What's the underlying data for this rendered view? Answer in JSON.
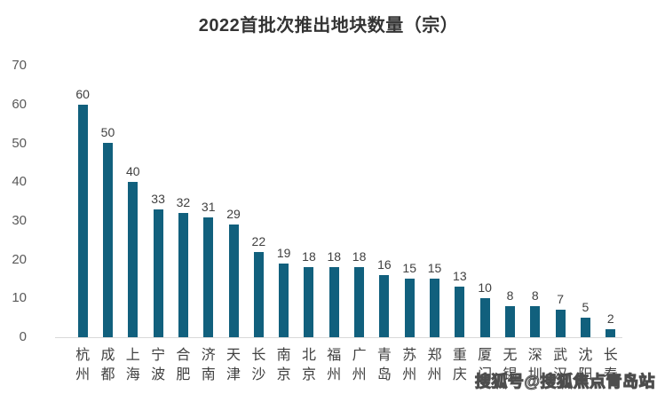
{
  "title": "2022首批次推出地块数量（宗）",
  "watermark": "搜狐号@搜狐焦点青岛站",
  "colors": {
    "bar": "#11607d",
    "title_text": "#333333",
    "axis_tick_text": "#595959",
    "value_label_text": "#404040",
    "category_label_text": "#404040",
    "axis_line": "#d9d9d9",
    "background": "#ffffff"
  },
  "chart_data": {
    "type": "bar",
    "title": "2022首批次推出地块数量（宗）",
    "categories": [
      "杭州",
      "成都",
      "上海",
      "宁波",
      "合肥",
      "济南",
      "天津",
      "长沙",
      "南京",
      "北京",
      "福州",
      "广州",
      "青岛",
      "苏州",
      "郑州",
      "重庆",
      "厦门",
      "无锡",
      "深圳",
      "武汉",
      "沈阳",
      "长春"
    ],
    "values": [
      60,
      50,
      40,
      33,
      32,
      31,
      29,
      22,
      19,
      18,
      18,
      18,
      16,
      15,
      15,
      13,
      10,
      8,
      8,
      7,
      5,
      2
    ],
    "xlabel": "",
    "ylabel": "",
    "ylim": [
      0,
      70
    ],
    "yticks": [
      0,
      10,
      20,
      30,
      40,
      50,
      60,
      70
    ],
    "grid": false,
    "legend_position": "none",
    "data_labels": true,
    "category_label_orientation": "vertical-stacked"
  }
}
